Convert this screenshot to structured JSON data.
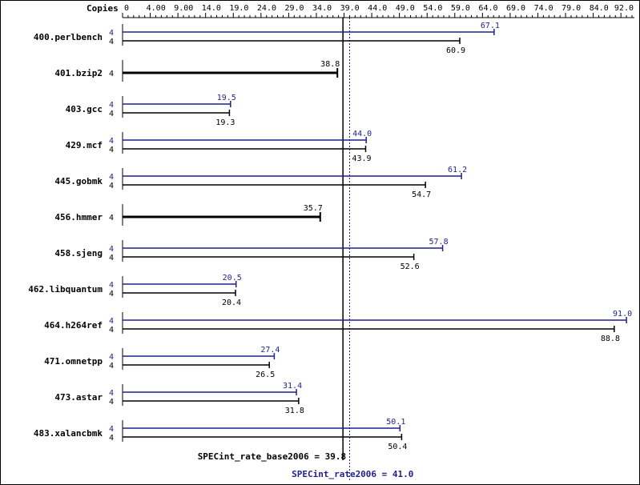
{
  "chart_data": {
    "type": "bar",
    "orientation": "horizontal",
    "copies_header": "Copies",
    "x_axis": {
      "min": 0,
      "max": 92.0,
      "tick_labels": [
        "0",
        "4.00",
        "9.00",
        "14.0",
        "19.0",
        "24.0",
        "29.0",
        "34.0",
        "39.0",
        "44.0",
        "49.0",
        "54.0",
        "59.0",
        "64.0",
        "69.0",
        "74.0",
        "79.0",
        "84.0",
        "92.0"
      ],
      "tick_values": [
        0,
        4,
        9,
        14,
        19,
        24,
        29,
        34,
        39,
        44,
        49,
        54,
        59,
        64,
        69,
        74,
        79,
        84,
        92
      ]
    },
    "colors": {
      "peak": "#1f1f8f",
      "base": "#000000"
    },
    "series": [
      {
        "name": "peak",
        "key": "peak"
      },
      {
        "name": "base",
        "key": "base"
      }
    ],
    "benchmarks": [
      {
        "name": "400.perlbench",
        "copies_peak": "4",
        "copies_base": "4",
        "peak": 67.1,
        "base": 60.9,
        "peak_label": "67.1",
        "base_label": "60.9"
      },
      {
        "name": "401.bzip2",
        "copies_peak": "",
        "copies_base": "4",
        "peak": null,
        "base": 38.8,
        "peak_label": "",
        "base_label": "38.8"
      },
      {
        "name": "403.gcc",
        "copies_peak": "4",
        "copies_base": "4",
        "peak": 19.5,
        "base": 19.3,
        "peak_label": "19.5",
        "base_label": "19.3"
      },
      {
        "name": "429.mcf",
        "copies_peak": "4",
        "copies_base": "4",
        "peak": 44.0,
        "base": 43.9,
        "peak_label": "44.0",
        "base_label": "43.9"
      },
      {
        "name": "445.gobmk",
        "copies_peak": "4",
        "copies_base": "4",
        "peak": 61.2,
        "base": 54.7,
        "peak_label": "61.2",
        "base_label": "54.7"
      },
      {
        "name": "456.hmmer",
        "copies_peak": "",
        "copies_base": "4",
        "peak": null,
        "base": 35.7,
        "peak_label": "",
        "base_label": "35.7"
      },
      {
        "name": "458.sjeng",
        "copies_peak": "4",
        "copies_base": "4",
        "peak": 57.8,
        "base": 52.6,
        "peak_label": "57.8",
        "base_label": "52.6"
      },
      {
        "name": "462.libquantum",
        "copies_peak": "4",
        "copies_base": "4",
        "peak": 20.5,
        "base": 20.4,
        "peak_label": "20.5",
        "base_label": "20.4"
      },
      {
        "name": "464.h264ref",
        "copies_peak": "4",
        "copies_base": "4",
        "peak": 91.0,
        "base": 88.8,
        "peak_label": "91.0",
        "base_label": "88.8"
      },
      {
        "name": "471.omnetpp",
        "copies_peak": "4",
        "copies_base": "4",
        "peak": 27.4,
        "base": 26.5,
        "peak_label": "27.4",
        "base_label": "26.5"
      },
      {
        "name": "473.astar",
        "copies_peak": "4",
        "copies_base": "4",
        "peak": 31.4,
        "base": 31.8,
        "peak_label": "31.4",
        "base_label": "31.8"
      },
      {
        "name": "483.xalancbmk",
        "copies_peak": "4",
        "copies_base": "4",
        "peak": 50.1,
        "base": 50.4,
        "peak_label": "50.1",
        "base_label": "50.4"
      }
    ],
    "reference_lines": [
      {
        "key": "base",
        "value": 39.8,
        "label": "SPECint_rate_base2006 = 39.8"
      },
      {
        "key": "peak",
        "value": 41.0,
        "label": "SPECint_rate2006 = 41.0"
      }
    ]
  }
}
